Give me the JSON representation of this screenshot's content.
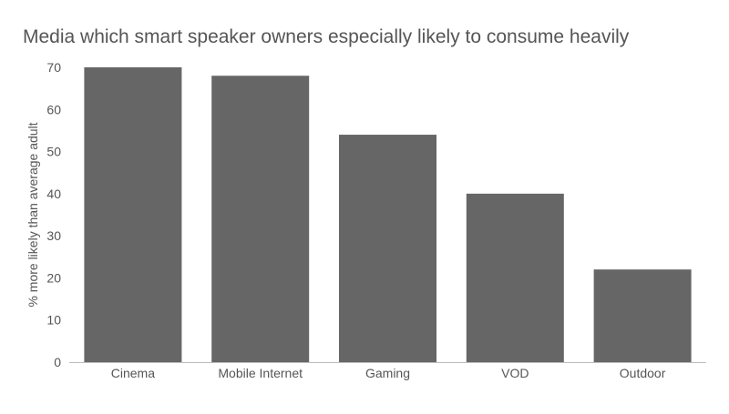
{
  "chart_data": {
    "type": "bar",
    "title": "Media which smart speaker owners especially likely to consume heavily",
    "xlabel": "",
    "ylabel": "% more likely than average adult",
    "categories": [
      "Cinema",
      "Mobile Internet",
      "Gaming",
      "VOD",
      "Outdoor"
    ],
    "values": [
      70,
      68,
      54,
      40,
      22
    ],
    "ylim": [
      0,
      70
    ],
    "yticks": [
      0,
      10,
      20,
      30,
      40,
      50,
      60,
      70
    ],
    "grid": false,
    "bar_color": "#666666",
    "text_color": "#555555"
  }
}
